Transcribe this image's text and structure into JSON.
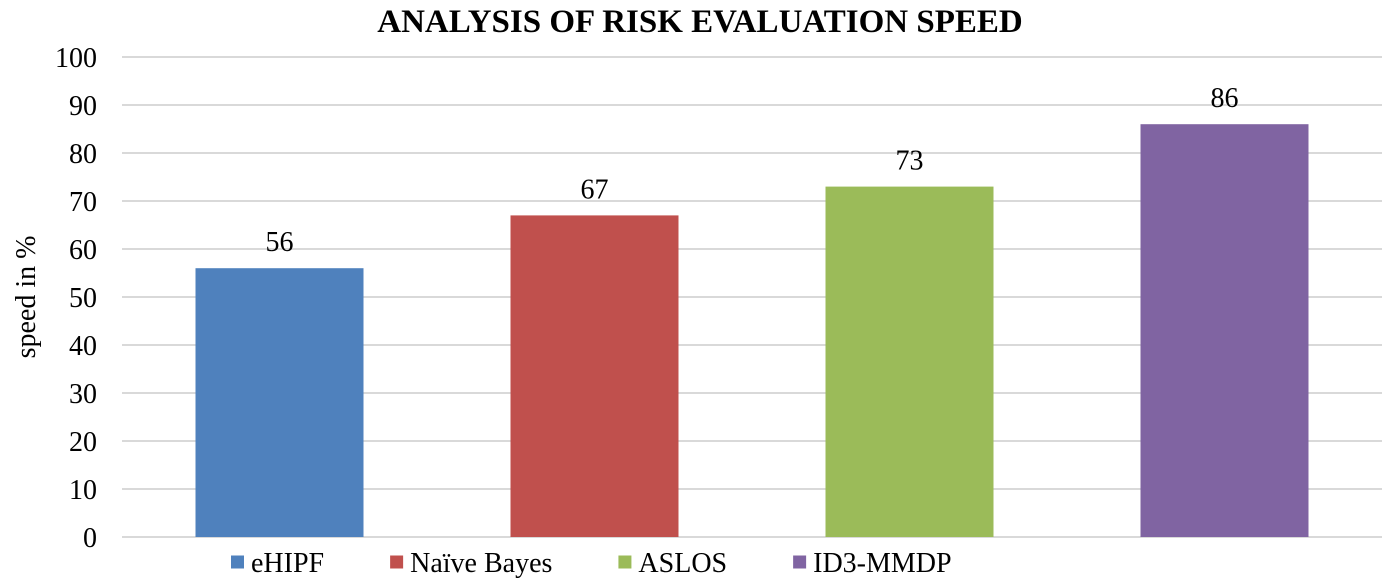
{
  "chart_data": {
    "type": "bar",
    "title": "ANALYSIS OF RISK EVALUATION SPEED",
    "xlabel": "",
    "ylabel": "speed in %",
    "ylim": [
      0,
      100
    ],
    "ytick_step": 10,
    "grid": true,
    "legend_position": "bottom",
    "categories": [
      "eHIPF",
      "Naïve Bayes",
      "ASLOS",
      "ID3-MMDP"
    ],
    "values": [
      56,
      67,
      73,
      86
    ],
    "colors": [
      "#4f81bd",
      "#c0504d",
      "#9bbb59",
      "#8064a2"
    ]
  }
}
